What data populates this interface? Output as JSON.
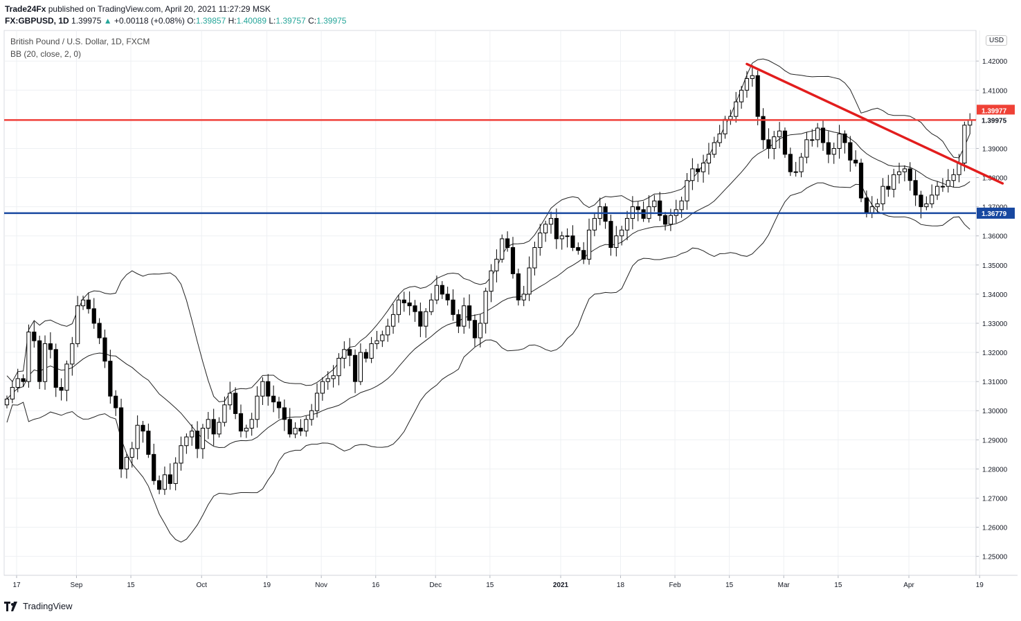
{
  "header": {
    "publisher": "Trade24Fx",
    "published_text": "published on TradingView.com, April 20, 2021 11:27:29 MSK",
    "symbol_line": "FX:GBPUSD, 1D",
    "last": "1.39975",
    "change": "+0.00118 (+0.08%)",
    "o_label": "O:",
    "o_val": "1.39857",
    "h_label": "H:",
    "h_val": "1.40089",
    "l_label": "L:",
    "l_val": "1.39757",
    "c_label": "C:",
    "c_val": "1.39975"
  },
  "legend": {
    "title": "British Pound / U.S. Dollar, 1D, FXCM",
    "indicator": "BB (20, close, 2, 0)"
  },
  "currency_badge": "USD",
  "footer": {
    "brand": "TradingView"
  },
  "colors": {
    "bull": "#ffffff",
    "bear": "#000000",
    "resistance_line": "#f0413a",
    "support_line": "#1848a0",
    "trendline": "#e21d1d",
    "grid": "#eef0f3",
    "price_tag_red": "#ef4136",
    "price_tag_blue": "#1848a0"
  },
  "chart_data": {
    "type": "candlestick",
    "title": "British Pound / U.S. Dollar, 1D, FXCM",
    "indicator": "BB (20, close, 2, 0)",
    "y_range": [
      1.2435,
      1.4305
    ],
    "y_ticks": [
      "1.25000",
      "1.26000",
      "1.27000",
      "1.28000",
      "1.29000",
      "1.30000",
      "1.31000",
      "1.32000",
      "1.33000",
      "1.34000",
      "1.35000",
      "1.36000",
      "1.37000",
      "1.38000",
      "1.39000",
      "1.40000",
      "1.41000",
      "1.42000"
    ],
    "x_ticks": [
      {
        "label": "17",
        "idx": 0
      },
      {
        "label": "Sep",
        "idx": 11
      },
      {
        "label": "15",
        "idx": 21
      },
      {
        "label": "Oct",
        "idx": 34
      },
      {
        "label": "19",
        "idx": 46
      },
      {
        "label": "Nov",
        "idx": 56
      },
      {
        "label": "16",
        "idx": 66
      },
      {
        "label": "Dec",
        "idx": 77
      },
      {
        "label": "15",
        "idx": 87
      },
      {
        "label": "2021",
        "idx": 100
      },
      {
        "label": "18",
        "idx": 111
      },
      {
        "label": "Feb",
        "idx": 121
      },
      {
        "label": "15",
        "idx": 131
      },
      {
        "label": "Mar",
        "idx": 141
      },
      {
        "label": "15",
        "idx": 151
      },
      {
        "label": "Apr",
        "idx": 164
      },
      {
        "label": "19",
        "idx": 177
      }
    ],
    "price_tags": [
      {
        "value": 1.39977,
        "label": "1.39977",
        "color": "red"
      },
      {
        "value": 1.39975,
        "label": "1.39975",
        "color": "plain"
      },
      {
        "value": 1.36779,
        "label": "1.36779",
        "color": "blue"
      }
    ],
    "horizontal_lines": [
      {
        "value": 1.39977,
        "color": "red"
      },
      {
        "value": 1.36779,
        "color": "blue"
      }
    ],
    "trendline": {
      "from": {
        "idx": 136,
        "value": 1.419
      },
      "to": {
        "idx": 183,
        "value": 1.378
      }
    },
    "closes": [
      1.304,
      1.308,
      1.311,
      1.31,
      1.327,
      1.324,
      1.31,
      1.323,
      1.321,
      1.308,
      1.307,
      1.316,
      1.323,
      1.336,
      1.338,
      1.335,
      1.33,
      1.325,
      1.317,
      1.305,
      1.301,
      1.28,
      1.284,
      1.287,
      1.295,
      1.293,
      1.285,
      1.276,
      1.273,
      1.278,
      1.275,
      1.282,
      1.288,
      1.291,
      1.293,
      1.287,
      1.294,
      1.297,
      1.292,
      1.296,
      1.302,
      1.306,
      1.299,
      1.293,
      1.294,
      1.297,
      1.305,
      1.31,
      1.305,
      1.303,
      1.301,
      1.297,
      1.292,
      1.294,
      1.293,
      1.297,
      1.3,
      1.306,
      1.31,
      1.311,
      1.312,
      1.318,
      1.321,
      1.319,
      1.31,
      1.32,
      1.318,
      1.323,
      1.324,
      1.326,
      1.329,
      1.333,
      1.338,
      1.337,
      1.336,
      1.334,
      1.329,
      1.334,
      1.338,
      1.343,
      1.34,
      1.338,
      1.333,
      1.329,
      1.336,
      1.331,
      1.325,
      1.33,
      1.341,
      1.348,
      1.352,
      1.359,
      1.356,
      1.347,
      1.338,
      1.34,
      1.349,
      1.356,
      1.361,
      1.364,
      1.366,
      1.359,
      1.36,
      1.36,
      1.356,
      1.355,
      1.352,
      1.362,
      1.366,
      1.37,
      1.365,
      1.356,
      1.36,
      1.362,
      1.366,
      1.37,
      1.369,
      1.366,
      1.37,
      1.372,
      1.367,
      1.364,
      1.367,
      1.369,
      1.372,
      1.379,
      1.383,
      1.382,
      1.385,
      1.388,
      1.392,
      1.395,
      1.4,
      1.401,
      1.406,
      1.41,
      1.414,
      1.415,
      1.401,
      1.393,
      1.39,
      1.394,
      1.396,
      1.388,
      1.382,
      1.382,
      1.387,
      1.393,
      1.393,
      1.397,
      1.392,
      1.388,
      1.39,
      1.395,
      1.392,
      1.386,
      1.385,
      1.373,
      1.368,
      1.37,
      1.371,
      1.377,
      1.376,
      1.381,
      1.382,
      1.383,
      1.379,
      1.374,
      1.37,
      1.371,
      1.374,
      1.377,
      1.377,
      1.379,
      1.381,
      1.385,
      1.398,
      1.3998
    ]
  }
}
